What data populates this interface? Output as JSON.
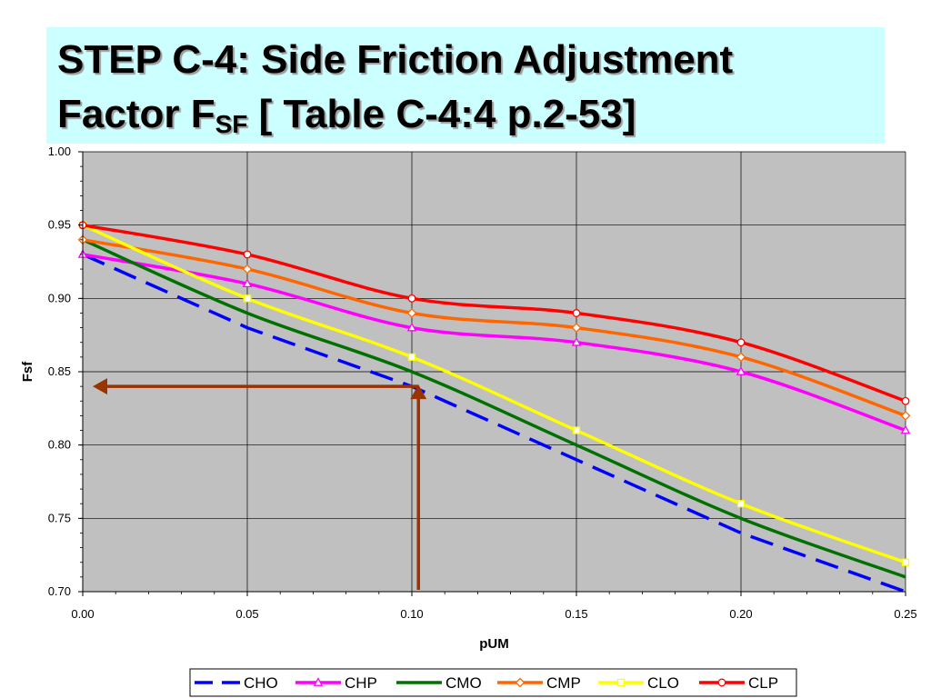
{
  "slide": {
    "title_line1": "STEP C-4: Side Friction Adjustment",
    "title_line2_main": "Factor F",
    "title_line2_sub": "SF",
    "title_line2_rest": " [ Table C-4:4 p.2-53]"
  },
  "chart_data": {
    "type": "line",
    "xlabel": "pUM",
    "ylabel": "Fsf",
    "xlim": [
      0,
      0.25
    ],
    "ylim": [
      0.7,
      1.0
    ],
    "x": [
      0,
      0.05,
      0.1,
      0.15,
      0.2,
      0.25
    ],
    "x_tick_labels": [
      "0.00",
      "0.05",
      "0.10",
      "0.15",
      "0.20",
      "0.25"
    ],
    "y_ticks": [
      0.7,
      0.75,
      0.8,
      0.85,
      0.9,
      0.95,
      1.0
    ],
    "y_tick_labels": [
      "0.70",
      "0.75",
      "0.80",
      "0.85",
      "0.90",
      "0.95",
      "1.00"
    ],
    "grid": true,
    "legend_position": "bottom",
    "series": [
      {
        "name": "CHO",
        "color": "#0000ff",
        "dash": true,
        "marker": "none",
        "values": [
          0.93,
          0.88,
          0.84,
          0.79,
          0.74,
          0.7
        ]
      },
      {
        "name": "CHP",
        "color": "#ff00ff",
        "dash": false,
        "marker": "triangle",
        "values": [
          0.93,
          0.91,
          0.88,
          0.87,
          0.85,
          0.81
        ]
      },
      {
        "name": "CMO",
        "color": "#007000",
        "dash": false,
        "marker": "none",
        "values": [
          0.94,
          0.89,
          0.85,
          0.8,
          0.75,
          0.71
        ]
      },
      {
        "name": "CMP",
        "color": "#ff6600",
        "dash": false,
        "marker": "diamond",
        "values": [
          0.94,
          0.92,
          0.89,
          0.88,
          0.86,
          0.82
        ]
      },
      {
        "name": "CLO",
        "color": "#ffff00",
        "dash": false,
        "marker": "square",
        "values": [
          0.95,
          0.9,
          0.86,
          0.81,
          0.76,
          0.72
        ]
      },
      {
        "name": "CLP",
        "color": "#ff0000",
        "dash": false,
        "marker": "circle",
        "values": [
          0.95,
          0.93,
          0.9,
          0.89,
          0.87,
          0.83
        ]
      }
    ],
    "annotation": {
      "color": "#993300",
      "x": 0.102,
      "y": 0.84,
      "description": "arrow up from x-axis at pUM≈0.10 then left to Fsf≈0.84"
    }
  }
}
